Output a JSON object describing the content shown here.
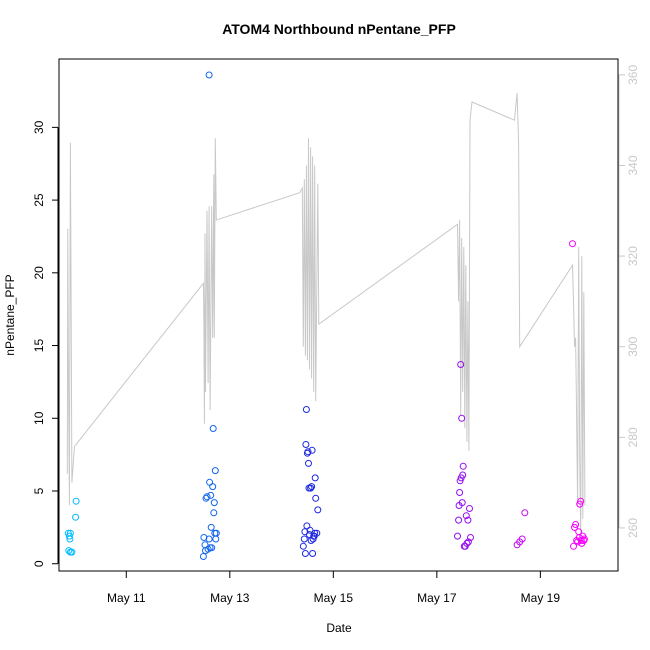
{
  "chart_data": {
    "type": "scatter",
    "title": "ATOM4 Northbound nPentane_PFP",
    "xlabel": "Date",
    "ylabel": "nPentane_PFP",
    "x_unit": "days (May 2024, fractional)",
    "xlim": [
      9.7,
      20.5
    ],
    "ylim": [
      -0.5,
      34.7
    ],
    "y_ticks": [
      0,
      5,
      10,
      15,
      20,
      25,
      30
    ],
    "x_ticks": [
      {
        "value": 11,
        "label": "May 11"
      },
      {
        "value": 13,
        "label": "May 13"
      },
      {
        "value": 15,
        "label": "May 15"
      },
      {
        "value": 17,
        "label": "May 17"
      },
      {
        "value": 19,
        "label": "May 19"
      }
    ],
    "y2lim": [
      250.5,
      363.5
    ],
    "y2_ticks": [
      260,
      280,
      300,
      320,
      340,
      360
    ],
    "grid": false,
    "legend": "none",
    "colors": {
      "points_start": "#00bfff",
      "points_mid": "#1e1ee0",
      "points_end": "#ff00ff",
      "line": "#c8c8c8",
      "axis": "#000000",
      "axis_right": "#c8c8c8"
    },
    "points": [
      [
        9.88,
        2.1
      ],
      [
        9.9,
        1.9
      ],
      [
        9.91,
        1.7
      ],
      [
        9.92,
        2.1
      ],
      [
        9.89,
        0.9
      ],
      [
        9.92,
        0.8
      ],
      [
        9.95,
        0.8
      ],
      [
        10.02,
        3.2
      ],
      [
        10.03,
        4.3
      ],
      [
        12.49,
        0.5
      ],
      [
        12.5,
        1.8
      ],
      [
        12.52,
        1.3
      ],
      [
        12.53,
        0.9
      ],
      [
        12.54,
        4.5
      ],
      [
        12.56,
        4.6
      ],
      [
        12.58,
        1.0
      ],
      [
        12.6,
        1.7
      ],
      [
        12.61,
        5.6
      ],
      [
        12.62,
        1.1
      ],
      [
        12.63,
        4.7
      ],
      [
        12.64,
        2.5
      ],
      [
        12.65,
        1.1
      ],
      [
        12.67,
        5.3
      ],
      [
        12.68,
        9.3
      ],
      [
        12.69,
        3.5
      ],
      [
        12.7,
        4.2
      ],
      [
        12.71,
        2.1
      ],
      [
        12.72,
        6.4
      ],
      [
        12.73,
        1.7
      ],
      [
        12.74,
        2.1
      ],
      [
        12.6,
        33.6
      ],
      [
        14.42,
        1.2
      ],
      [
        14.44,
        1.7
      ],
      [
        14.45,
        2.2
      ],
      [
        14.46,
        0.7
      ],
      [
        14.47,
        8.2
      ],
      [
        14.48,
        10.6
      ],
      [
        14.49,
        2.6
      ],
      [
        14.5,
        7.6
      ],
      [
        14.51,
        7.7
      ],
      [
        14.52,
        6.9
      ],
      [
        14.53,
        5.2
      ],
      [
        14.54,
        2.0
      ],
      [
        14.55,
        2.3
      ],
      [
        14.56,
        5.2
      ],
      [
        14.57,
        1.6
      ],
      [
        14.58,
        5.3
      ],
      [
        14.59,
        7.8
      ],
      [
        14.6,
        0.7
      ],
      [
        14.61,
        1.7
      ],
      [
        14.62,
        1.9
      ],
      [
        14.63,
        1.9
      ],
      [
        14.64,
        2.1
      ],
      [
        14.65,
        5.9
      ],
      [
        14.66,
        4.5
      ],
      [
        14.68,
        2.1
      ],
      [
        14.7,
        3.7
      ],
      [
        17.4,
        1.9
      ],
      [
        17.42,
        3.0
      ],
      [
        17.43,
        4.0
      ],
      [
        17.44,
        4.9
      ],
      [
        17.45,
        5.7
      ],
      [
        17.46,
        13.7
      ],
      [
        17.47,
        5.9
      ],
      [
        17.48,
        10.0
      ],
      [
        17.49,
        4.2
      ],
      [
        17.5,
        6.1
      ],
      [
        17.51,
        6.7
      ],
      [
        17.53,
        1.2
      ],
      [
        17.55,
        1.2
      ],
      [
        17.57,
        3.3
      ],
      [
        17.58,
        1.4
      ],
      [
        17.6,
        3.0
      ],
      [
        17.61,
        1.5
      ],
      [
        17.63,
        3.8
      ],
      [
        17.65,
        1.8
      ],
      [
        18.55,
        1.3
      ],
      [
        18.6,
        1.5
      ],
      [
        18.65,
        1.7
      ],
      [
        18.7,
        3.5
      ],
      [
        19.62,
        22.0
      ],
      [
        19.64,
        1.2
      ],
      [
        19.66,
        2.5
      ],
      [
        19.68,
        2.7
      ],
      [
        19.7,
        1.6
      ],
      [
        19.72,
        1.5
      ],
      [
        19.74,
        2.2
      ],
      [
        19.75,
        1.8
      ],
      [
        19.76,
        4.1
      ],
      [
        19.78,
        4.3
      ],
      [
        19.79,
        1.6
      ],
      [
        19.8,
        1.4
      ],
      [
        19.82,
        1.9
      ],
      [
        19.84,
        1.6
      ],
      [
        19.85,
        1.7
      ]
    ],
    "line_series": {
      "axis": "right",
      "points": [
        [
          9.86,
          272
        ],
        [
          9.87,
          326
        ],
        [
          9.88,
          300
        ],
        [
          9.9,
          265
        ],
        [
          9.92,
          345
        ],
        [
          9.95,
          270
        ],
        [
          10.0,
          278
        ],
        [
          12.49,
          314
        ],
        [
          12.5,
          305
        ],
        [
          12.51,
          283
        ],
        [
          12.52,
          325
        ],
        [
          12.53,
          290
        ],
        [
          12.56,
          330
        ],
        [
          12.58,
          292
        ],
        [
          12.6,
          331
        ],
        [
          12.62,
          286
        ],
        [
          12.65,
          331
        ],
        [
          12.67,
          302
        ],
        [
          12.69,
          338
        ],
        [
          12.7,
          302
        ],
        [
          12.72,
          346
        ],
        [
          12.74,
          328
        ],
        [
          12.75,
          328
        ],
        [
          14.35,
          334
        ],
        [
          14.4,
          335
        ],
        [
          14.42,
          300
        ],
        [
          14.44,
          337
        ],
        [
          14.46,
          298
        ],
        [
          14.48,
          340
        ],
        [
          14.5,
          297
        ],
        [
          14.52,
          346
        ],
        [
          14.54,
          295
        ],
        [
          14.56,
          344
        ],
        [
          14.58,
          293
        ],
        [
          14.6,
          342
        ],
        [
          14.62,
          290
        ],
        [
          14.64,
          340
        ],
        [
          14.66,
          288
        ],
        [
          14.7,
          336
        ],
        [
          14.72,
          305
        ],
        [
          17.4,
          327
        ],
        [
          17.42,
          310
        ],
        [
          17.44,
          328
        ],
        [
          17.46,
          285
        ],
        [
          17.48,
          324
        ],
        [
          17.5,
          290
        ],
        [
          17.52,
          322
        ],
        [
          17.54,
          282
        ],
        [
          17.56,
          318
        ],
        [
          17.58,
          279
        ],
        [
          17.6,
          310
        ],
        [
          17.62,
          277
        ],
        [
          17.64,
          350
        ],
        [
          17.66,
          352
        ],
        [
          17.68,
          354
        ],
        [
          18.5,
          350
        ],
        [
          18.55,
          356
        ],
        [
          18.58,
          345
        ],
        [
          18.6,
          300
        ],
        [
          19.62,
          318
        ],
        [
          19.64,
          310
        ],
        [
          19.66,
          300
        ],
        [
          19.68,
          302
        ],
        [
          19.7,
          285
        ],
        [
          19.72,
          265
        ],
        [
          19.74,
          322
        ],
        [
          19.76,
          275
        ],
        [
          19.78,
          258
        ],
        [
          19.8,
          320
        ],
        [
          19.82,
          262
        ],
        [
          19.84,
          312
        ],
        [
          19.86,
          265
        ]
      ]
    }
  }
}
